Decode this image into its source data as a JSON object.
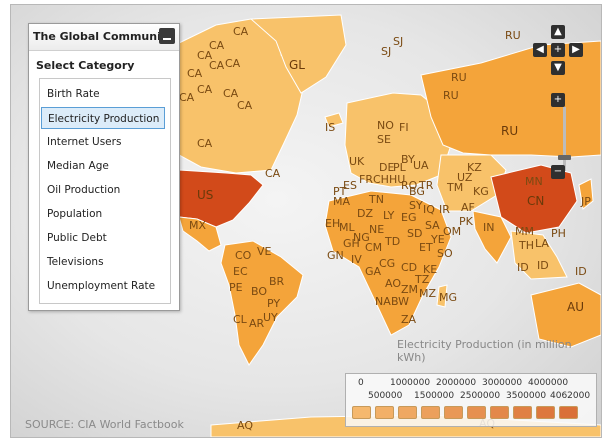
{
  "panel": {
    "title": "The Global Community",
    "category_title": "Select Category",
    "items": [
      {
        "label": "Birth Rate"
      },
      {
        "label": "Electricity Production"
      },
      {
        "label": "Internet Users"
      },
      {
        "label": "Median Age"
      },
      {
        "label": "Oil Production"
      },
      {
        "label": "Population"
      },
      {
        "label": "Public Debt"
      },
      {
        "label": "Televisions"
      },
      {
        "label": "Unemployment Rate"
      }
    ],
    "selected_index": 1
  },
  "map": {
    "unit_label": "Electricity Production (in million kWh)",
    "source": "SOURCE: CIA World Factbook",
    "country_labels": [
      "CA",
      "CA",
      "CA",
      "CA",
      "CA",
      "CA",
      "CA",
      "CA",
      "CA",
      "CA",
      "CA",
      "CA",
      "GL",
      "US",
      "MX",
      "CA",
      "IS",
      "NO",
      "FI",
      "SE",
      "UK",
      "DE",
      "FR",
      "ES",
      "PL",
      "BY",
      "UA",
      "RO",
      "TR",
      "KZ",
      "TM",
      "KG",
      "UZ",
      "AF",
      "IQ",
      "IR",
      "SA",
      "PK",
      "IN",
      "CN",
      "MN",
      "JP",
      "RU",
      "RU",
      "RU",
      "RU",
      "SJ",
      "SJ",
      "EH",
      "ML",
      "NE",
      "TD",
      "SD",
      "ET",
      "SO",
      "NG",
      "CM",
      "CD",
      "AO",
      "NA",
      "BW",
      "ZA",
      "MG",
      "MZ",
      "EG",
      "LY",
      "DZ",
      "MA",
      "TN",
      "GH",
      "GN",
      "IV",
      "GA",
      "CG",
      "KE",
      "TZ",
      "ZM",
      "CO",
      "VE",
      "EC",
      "PE",
      "BR",
      "BO",
      "PY",
      "AR",
      "CL",
      "UY",
      "MM",
      "TH",
      "LA",
      "ID",
      "ID",
      "AU",
      "ID",
      "PH",
      "AQ",
      "AQ",
      "OM",
      "YE",
      "SY",
      "BG",
      "HU",
      "CH",
      "PT"
    ],
    "colors": {
      "low": "#f8c26a",
      "mid": "#f4a43a",
      "high": "#e8852a",
      "top": "#d24a1a",
      "selected_border": "#5a9ed6"
    }
  },
  "legend": {
    "ticks_top": [
      "0",
      "1000000",
      "2000000",
      "3000000",
      "4000000"
    ],
    "ticks_bottom": [
      "500000",
      "1500000",
      "2500000",
      "3500000",
      "4062000"
    ],
    "swatch_colors": [
      "#f5b86e",
      "#f2b068",
      "#efa862",
      "#eca05c",
      "#e99856",
      "#e69050",
      "#e3884a",
      "#e08044",
      "#dd783e",
      "#da7038"
    ]
  },
  "controls": {
    "pan_up": "▲",
    "pan_down": "▼",
    "pan_left": "◀",
    "pan_right": "▶",
    "center": "+",
    "zoom_in": "+",
    "zoom_out": "−"
  }
}
